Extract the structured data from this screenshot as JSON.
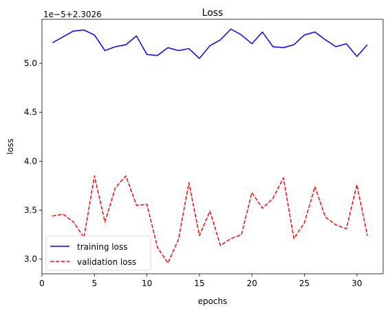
{
  "chart_data": {
    "type": "line",
    "title": "Loss",
    "xlabel": "epochs",
    "ylabel": "loss",
    "offset_text": "1e−5+2.3026",
    "xlim": [
      0,
      32.5
    ],
    "ylim": [
      2.85,
      5.45
    ],
    "xticks": [
      0,
      5,
      10,
      15,
      20,
      25,
      30
    ],
    "yticks": [
      3.0,
      3.5,
      4.0,
      4.5,
      5.0
    ],
    "ytick_labels": [
      "3.0",
      "3.5",
      "4.0",
      "4.5",
      "5.0"
    ],
    "xtick_labels": [
      "0",
      "5",
      "10",
      "15",
      "20",
      "25",
      "30"
    ],
    "legend_position": "lower-left",
    "x": [
      1,
      2,
      3,
      4,
      5,
      6,
      7,
      8,
      9,
      10,
      11,
      12,
      13,
      14,
      15,
      16,
      17,
      18,
      19,
      20,
      21,
      22,
      23,
      24,
      25,
      26,
      27,
      28,
      29,
      30,
      31
    ],
    "series": [
      {
        "name": "training loss",
        "color": "#0000ff",
        "style": "solid",
        "values": [
          5.21,
          5.27,
          5.33,
          5.34,
          5.29,
          5.13,
          5.17,
          5.19,
          5.28,
          5.09,
          5.08,
          5.16,
          5.13,
          5.15,
          5.05,
          5.18,
          5.24,
          5.35,
          5.29,
          5.2,
          5.32,
          5.17,
          5.16,
          5.19,
          5.29,
          5.32,
          5.24,
          5.17,
          5.2,
          5.07,
          5.19
        ]
      },
      {
        "name": "validation loss",
        "color": "#ff0000",
        "style": "dashed",
        "values": [
          3.44,
          3.46,
          3.38,
          3.22,
          3.85,
          3.38,
          3.73,
          3.85,
          3.55,
          3.56,
          3.12,
          2.96,
          3.2,
          3.78,
          3.24,
          3.49,
          3.14,
          3.21,
          3.25,
          3.68,
          3.52,
          3.62,
          3.83,
          3.21,
          3.37,
          3.74,
          3.43,
          3.35,
          3.31,
          3.76,
          3.24
        ]
      }
    ]
  }
}
